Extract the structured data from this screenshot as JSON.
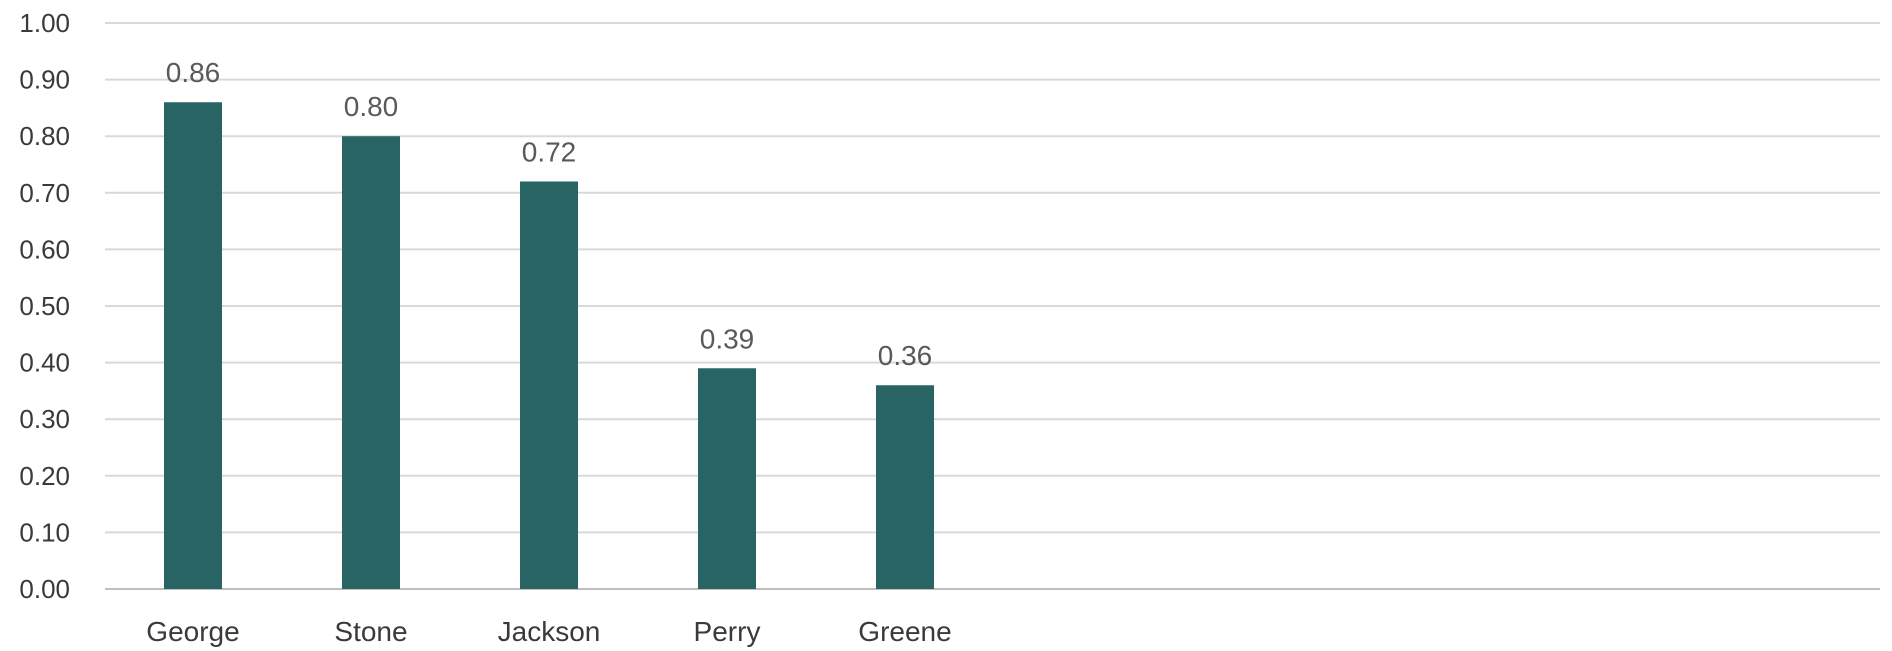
{
  "chart_data": {
    "type": "bar",
    "categories": [
      "George",
      "Stone",
      "Jackson",
      "Perry",
      "Greene"
    ],
    "values": [
      0.86,
      0.8,
      0.72,
      0.39,
      0.36
    ],
    "value_labels": [
      "0.86",
      "0.80",
      "0.72",
      "0.39",
      "0.36"
    ],
    "ylim": [
      0,
      1.0
    ],
    "yticks": [
      "0.00",
      "0.10",
      "0.20",
      "0.30",
      "0.40",
      "0.50",
      "0.60",
      "0.70",
      "0.80",
      "0.90",
      "1.00"
    ],
    "grid": true,
    "legend": "none",
    "title": "",
    "xlabel": "",
    "ylabel": "",
    "bar_color": "#286464"
  }
}
